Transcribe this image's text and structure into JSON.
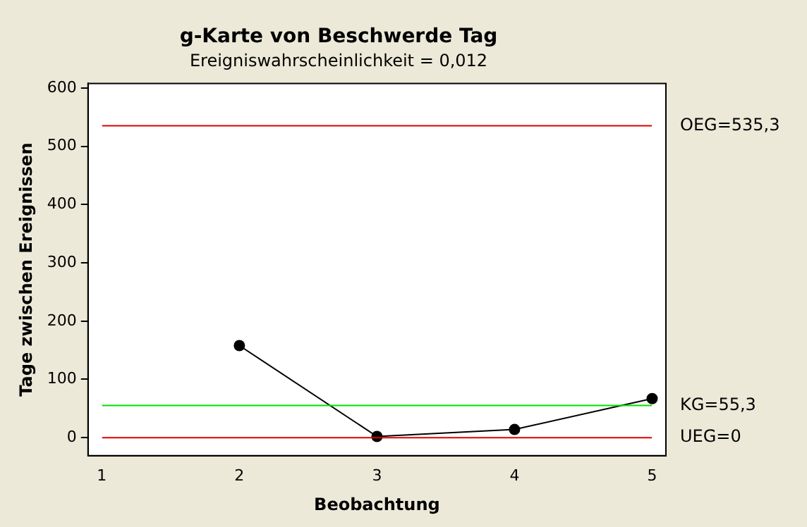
{
  "chart_data": {
    "type": "line",
    "title": "g-Karte von Beschwerde Tag",
    "subtitle": "Ereigniswahrscheinlichkeit = 0,012",
    "xlabel": "Beobachtung",
    "ylabel": "Tage zwischen Ereignissen",
    "x": [
      2,
      3,
      4,
      5
    ],
    "series": [
      {
        "color": "#000000",
        "values": [
          158,
          2,
          14,
          67
        ]
      }
    ],
    "xlim": [
      0.9,
      5.1
    ],
    "xticks": [
      1,
      2,
      3,
      4,
      5
    ],
    "ylim": [
      -31,
      608
    ],
    "yticks": [
      0,
      100,
      200,
      300,
      400,
      500,
      600
    ],
    "ref_lines": [
      {
        "axis": "y",
        "value": 535.3,
        "label": "OEG=535,3",
        "color": "#e00000"
      },
      {
        "axis": "y",
        "value": 55.3,
        "label": "KG=55,3",
        "color": "#00e000"
      },
      {
        "axis": "y",
        "value": 0,
        "label": "UEG=0",
        "color": "#e00000"
      }
    ],
    "grid": false,
    "legend": false,
    "marker": "circle",
    "line_style": "solid"
  }
}
